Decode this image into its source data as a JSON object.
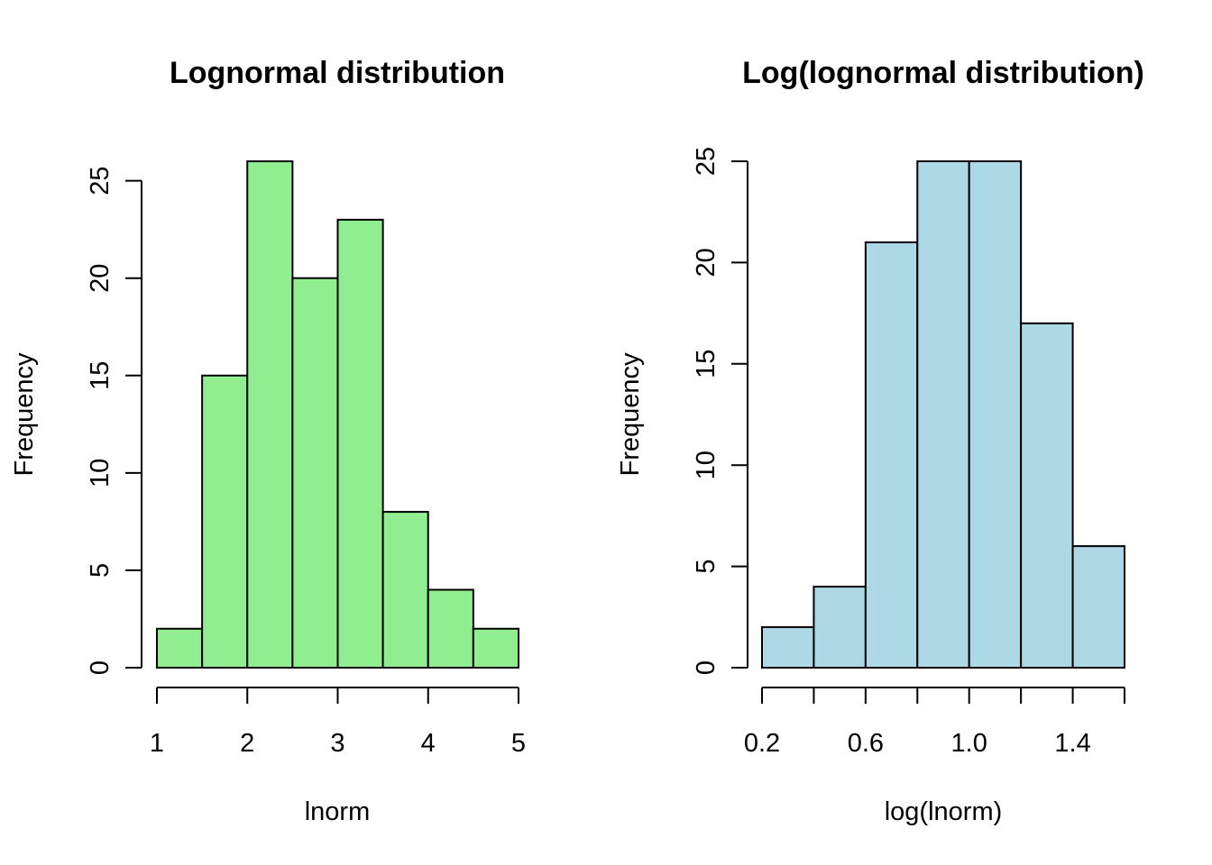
{
  "chart_data": [
    {
      "type": "bar",
      "title": "Lognormal distribution",
      "xlabel": "lnorm",
      "ylabel": "Frequency",
      "fill_color": "#90EE90",
      "bins": [
        {
          "from": 1.0,
          "to": 1.5,
          "count": 2
        },
        {
          "from": 1.5,
          "to": 2.0,
          "count": 15
        },
        {
          "from": 2.0,
          "to": 2.5,
          "count": 26
        },
        {
          "from": 2.5,
          "to": 3.0,
          "count": 20
        },
        {
          "from": 3.0,
          "to": 3.5,
          "count": 23
        },
        {
          "from": 3.5,
          "to": 4.0,
          "count": 8
        },
        {
          "from": 4.0,
          "to": 4.5,
          "count": 4
        },
        {
          "from": 4.5,
          "to": 5.0,
          "count": 2
        }
      ],
      "xlim": [
        1,
        5
      ],
      "ylim": [
        0,
        26
      ],
      "x_ticks": [
        1,
        2,
        3,
        4,
        5
      ],
      "x_tick_labels": [
        "1",
        "2",
        "3",
        "4",
        "5"
      ],
      "y_ticks": [
        0,
        5,
        10,
        15,
        20,
        25
      ],
      "y_tick_labels": [
        "0",
        "5",
        "10",
        "15",
        "20",
        "25"
      ],
      "grid": false
    },
    {
      "type": "bar",
      "title": "Log(lognormal distribution)",
      "xlabel": "log(lnorm)",
      "ylabel": "Frequency",
      "fill_color": "#ADD8E6",
      "bins": [
        {
          "from": 0.2,
          "to": 0.4,
          "count": 2
        },
        {
          "from": 0.4,
          "to": 0.6,
          "count": 4
        },
        {
          "from": 0.6,
          "to": 0.8,
          "count": 21
        },
        {
          "from": 0.8,
          "to": 1.0,
          "count": 25
        },
        {
          "from": 1.0,
          "to": 1.2,
          "count": 25
        },
        {
          "from": 1.2,
          "to": 1.4,
          "count": 17
        },
        {
          "from": 1.4,
          "to": 1.6,
          "count": 6
        }
      ],
      "xlim": [
        0.2,
        1.6
      ],
      "ylim": [
        0,
        25
      ],
      "x_ticks": [
        0.2,
        0.4,
        0.6,
        0.8,
        1.0,
        1.2,
        1.4,
        1.6
      ],
      "x_tick_labels": [
        "0.2",
        "",
        "0.6",
        "",
        "1.0",
        "",
        "1.4",
        ""
      ],
      "y_ticks": [
        0,
        5,
        10,
        15,
        20,
        25
      ],
      "y_tick_labels": [
        "0",
        "5",
        "10",
        "15",
        "20",
        "25"
      ],
      "grid": false
    }
  ]
}
